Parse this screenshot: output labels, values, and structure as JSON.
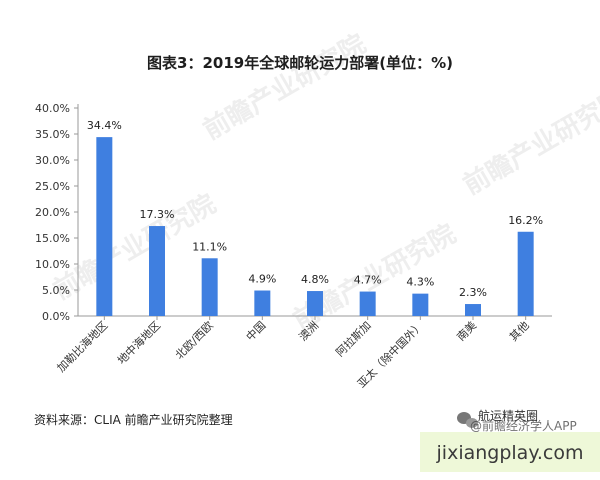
{
  "title": "图表3：2019年全球邮轮运力部署(单位：%)",
  "source_text": "资料来源：CLIA 前瞻产业研究院整理",
  "wechat_account": "@前瞻经济学人APP",
  "wechat_overlay": "航运精英圈",
  "site_footer": "jixiangplay.com",
  "watermark": "前瞻产业研究院",
  "colors": {
    "bar": "#3f7fe0",
    "axis": "#999999",
    "title": "#1e1e1e",
    "footer_band": "#eef8d8"
  },
  "chart_data": {
    "type": "bar",
    "title": "图表3：2019年全球邮轮运力部署(单位：%)",
    "xlabel": "",
    "ylabel": "",
    "categories": [
      "加勒比海地区",
      "地中海地区",
      "北欧/西欧",
      "中国",
      "澳洲",
      "阿拉斯加",
      "亚太（除中国外）",
      "南美",
      "其他"
    ],
    "values": [
      34.4,
      17.3,
      11.1,
      4.9,
      4.8,
      4.7,
      4.3,
      2.3,
      16.2
    ],
    "data_labels": [
      "34.4%",
      "17.3%",
      "11.1%",
      "4.9%",
      "4.8%",
      "4.7%",
      "4.3%",
      "2.3%",
      "16.2%"
    ],
    "y_ticks": [
      "0.0%",
      "5.0%",
      "10.0%",
      "15.0%",
      "20.0%",
      "25.0%",
      "30.0%",
      "35.0%",
      "40.0%"
    ],
    "ylim": [
      0,
      40
    ],
    "grid": false,
    "legend": "none"
  }
}
